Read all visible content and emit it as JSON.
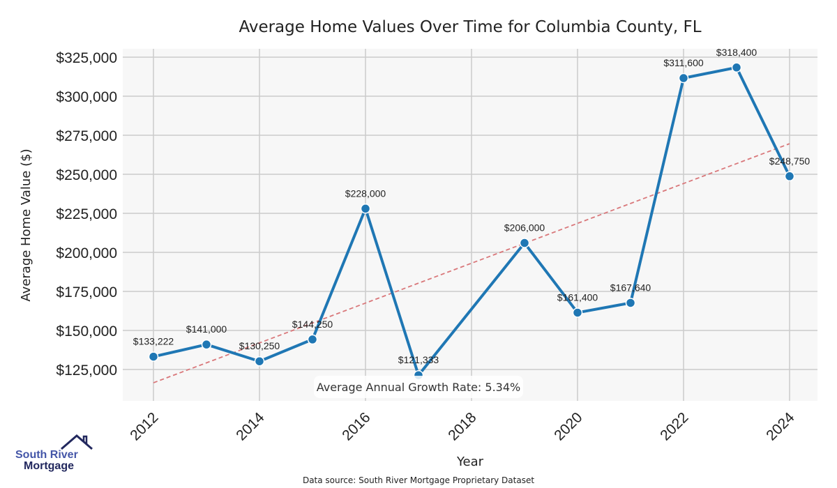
{
  "chart_data": {
    "type": "line",
    "title": "Average Home Values Over Time for Columbia County, FL",
    "xlabel": "Year",
    "ylabel": "Average Home Value ($)",
    "x": [
      2012,
      2013,
      2014,
      2015,
      2016,
      2017,
      2019,
      2020,
      2021,
      2022,
      2023,
      2024
    ],
    "values": [
      133222,
      141000,
      130250,
      144250,
      228000,
      121333,
      206000,
      161400,
      167640,
      311600,
      318400,
      248750
    ],
    "data_labels": [
      "$133,222",
      "$141,000",
      "$130,250",
      "$144,250",
      "$228,000",
      "$121,333",
      "$206,000",
      "$161,400",
      "$167,640",
      "$311,600",
      "$318,400",
      "$248,750"
    ],
    "xticks": [
      "2012",
      "2014",
      "2016",
      "2018",
      "2020",
      "2022",
      "2024"
    ],
    "yticks": [
      {
        "v": 125000,
        "label": "$125,000"
      },
      {
        "v": 150000,
        "label": "$150,000"
      },
      {
        "v": 175000,
        "label": "$175,000"
      },
      {
        "v": 200000,
        "label": "$200,000"
      },
      {
        "v": 225000,
        "label": "$225,000"
      },
      {
        "v": 250000,
        "label": "$250,000"
      },
      {
        "v": 275000,
        "label": "$275,000"
      },
      {
        "v": 300000,
        "label": "$300,000"
      },
      {
        "v": 325000,
        "label": "$325,000"
      }
    ],
    "trend": {
      "x": [
        2012,
        2024
      ],
      "y": [
        116500,
        269600
      ]
    },
    "annotation": "Average Annual Growth Rate: 5.34%",
    "grid": true,
    "colors": {
      "line": "#1f77b4",
      "trend": "#d9777a",
      "bg": "#f7f7f7",
      "grid": "#cccccc"
    }
  },
  "source": "Data source: South River Mortgage Proprietary Dataset",
  "logo": {
    "line1": "South River",
    "line2": "Mortgage"
  }
}
